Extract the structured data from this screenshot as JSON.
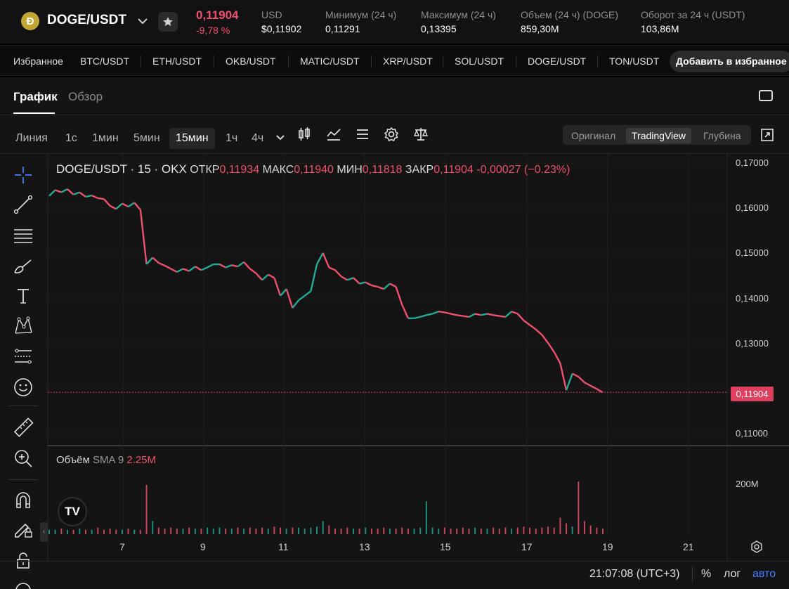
{
  "ticker": {
    "logo_glyph": "Ð",
    "pair": "DOGE/USDT",
    "last_price": "0,11904",
    "change": "-9,78 %",
    "stats": [
      {
        "label": "USD",
        "value": "$0,11902"
      },
      {
        "label": "Минимум (24 ч)",
        "value": "0,11291"
      },
      {
        "label": "Максимум (24 ч)",
        "value": "0,13395"
      },
      {
        "label": "Объем (24 ч) (DOGE)",
        "value": "859,30M"
      },
      {
        "label": "Оборот за 24 ч (USDT)",
        "value": "103,86M"
      }
    ]
  },
  "favorites": {
    "title": "Избранное",
    "items": [
      "BTC/USDT",
      "ETH/USDT",
      "OKB/USDT",
      "MATIC/USDT",
      "XRP/USDT",
      "SOL/USDT",
      "DOGE/USDT",
      "TON/USDT"
    ],
    "add_label": "Добавить в избранное"
  },
  "tabs": {
    "chart": "График",
    "overview": "Обзор"
  },
  "toolbar": {
    "timeframes": [
      "Линия",
      "1с",
      "1мин",
      "5мин",
      "15мин",
      "1ч",
      "4ч"
    ],
    "selected_timeframe": "15мин",
    "modes": [
      "Оригинал",
      "TradingView",
      "Глубина"
    ],
    "selected_mode": "TradingView"
  },
  "legend": {
    "symbol": "DOGE/USDT · 15 · OKX",
    "open_label": "ОТКР",
    "open": "0,11934",
    "high_label": "МАКС",
    "high": "0,11940",
    "low_label": "МИН",
    "low": "0,11818",
    "close_label": "ЗАКР",
    "close": "0,11904",
    "change": "-0,00027 (−0.23%)"
  },
  "volume_legend": {
    "label": "Объём",
    "sma": "SMA 9",
    "value": "2.25M"
  },
  "axis": {
    "y_labels": [
      "0,17000",
      "0,16000",
      "0,15000",
      "0,14000",
      "0,13000",
      "0,11000"
    ],
    "current_price": "0,11904",
    "volume_label": "200M",
    "x_labels": [
      "7",
      "9",
      "11",
      "13",
      "15",
      "17",
      "19",
      "21"
    ]
  },
  "tv_logo": "TV",
  "bottom": {
    "time": "21:07:08 (UTC+3)",
    "percent": "%",
    "log": "лог",
    "auto": "авто"
  },
  "colors": {
    "up": "#22ab94",
    "down": "#f0506e",
    "accent": "#4a7dff",
    "price_tag": "#e0405f"
  },
  "chart_data": {
    "type": "line",
    "title": "DOGE/USDT · 15 · OKX",
    "x_ticks": [
      "7",
      "9",
      "11",
      "13",
      "15",
      "17",
      "19",
      "21"
    ],
    "ylim": [
      0.11,
      0.17
    ],
    "series": [
      {
        "values": [
          0.1627,
          0.164,
          0.1635,
          0.1642,
          0.163,
          0.1635,
          0.1625,
          0.1628,
          0.1622,
          0.162,
          0.1605,
          0.1598,
          0.161,
          0.1603,
          0.1612,
          0.1596,
          0.1475,
          0.149,
          0.1478,
          0.1472,
          0.1465,
          0.1458,
          0.1465,
          0.146,
          0.147,
          0.1462,
          0.1468,
          0.1475,
          0.1475,
          0.1468,
          0.1473,
          0.147,
          0.148,
          0.1465,
          0.1455,
          0.144,
          0.1452,
          0.1445,
          0.1405,
          0.142,
          0.1378,
          0.1395,
          0.1405,
          0.1415,
          0.1475,
          0.15,
          0.1468,
          0.1462,
          0.1448,
          0.144,
          0.1445,
          0.1432,
          0.1435,
          0.1428,
          0.1425,
          0.142,
          0.1432,
          0.1425,
          0.1385,
          0.1355,
          0.1355,
          0.1358,
          0.1362,
          0.1365,
          0.137,
          0.1368,
          0.1365,
          0.1362,
          0.136,
          0.1358,
          0.1365,
          0.1362,
          0.1365,
          0.1362,
          0.136,
          0.1358,
          0.137,
          0.1365,
          0.135,
          0.134,
          0.133,
          0.1318,
          0.13,
          0.128,
          0.1255,
          0.1195,
          0.1232,
          0.1225,
          0.1212,
          0.1205,
          0.1198,
          0.119
        ]
      },
      {
        "values": [
          4,
          4,
          5,
          4,
          4,
          5,
          4,
          4,
          6,
          4,
          5,
          4,
          4,
          5,
          4,
          4,
          45,
          12,
          6,
          5,
          6,
          5,
          5,
          6,
          5,
          5,
          6,
          5,
          6,
          5,
          5,
          6,
          5,
          6,
          5,
          6,
          5,
          7,
          6,
          5,
          6,
          6,
          5,
          6,
          7,
          12,
          8,
          5,
          5,
          6,
          5,
          5,
          6,
          5,
          5,
          6,
          5,
          5,
          6,
          5,
          5,
          6,
          30,
          6,
          5,
          6,
          5,
          5,
          6,
          5,
          6,
          5,
          5,
          6,
          5,
          6,
          5,
          6,
          7,
          6,
          5,
          6,
          7,
          6,
          15,
          10,
          7,
          48,
          12,
          8,
          6,
          5
        ]
      }
    ]
  }
}
